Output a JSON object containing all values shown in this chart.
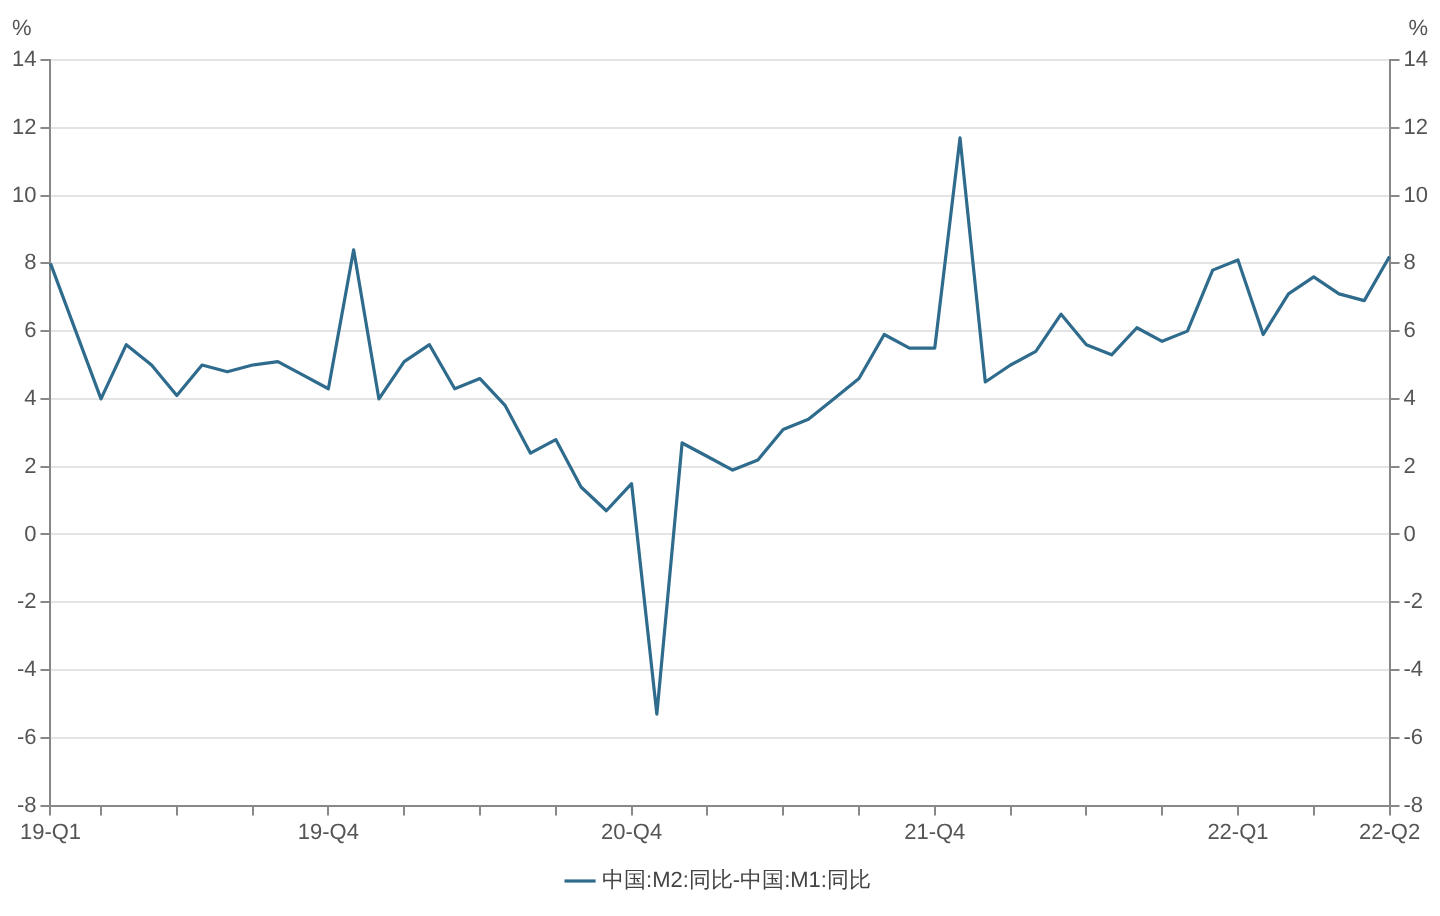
{
  "chart_data": {
    "type": "line",
    "categories": [
      "19-Q1",
      null,
      null,
      null,
      null,
      null,
      null,
      null,
      null,
      null,
      null,
      "19-Q4",
      null,
      null,
      null,
      null,
      null,
      null,
      null,
      null,
      null,
      null,
      null,
      "20-Q4",
      null,
      null,
      null,
      null,
      null,
      null,
      null,
      null,
      null,
      null,
      null,
      "21-Q4",
      null,
      null,
      null,
      null,
      null,
      null,
      null,
      null,
      null,
      null,
      null,
      "22-Q1",
      null,
      null,
      null,
      null,
      null,
      "22-Q2"
    ],
    "series": [
      {
        "name": "中国:M2:同比-中国:M1:同比",
        "color": "#2e6b8c",
        "values": [
          8.0,
          6.0,
          4.0,
          5.6,
          5.0,
          4.1,
          5.0,
          4.8,
          5.0,
          5.1,
          4.7,
          4.3,
          8.4,
          4.0,
          5.1,
          5.6,
          4.3,
          4.6,
          3.8,
          2.4,
          2.8,
          1.4,
          0.7,
          1.5,
          -5.3,
          2.7,
          2.3,
          1.9,
          2.2,
          3.1,
          3.4,
          4.0,
          4.6,
          5.9,
          5.5,
          5.5,
          11.7,
          4.5,
          5.0,
          5.4,
          6.5,
          5.6,
          5.3,
          6.1,
          5.7,
          6.0,
          7.8,
          8.1,
          5.9,
          7.1,
          7.6,
          7.1,
          6.9,
          8.2
        ]
      }
    ],
    "ylabel": "%",
    "y2label": "%",
    "ylim": [
      -8,
      14
    ],
    "yticks": [
      -8,
      -6,
      -4,
      -2,
      0,
      2,
      4,
      6,
      8,
      10,
      12,
      14
    ],
    "y2lim": [
      -8,
      14
    ],
    "y2ticks": [
      -8,
      -6,
      -4,
      -2,
      0,
      2,
      4,
      6,
      8,
      10,
      12,
      14
    ],
    "grid": "y",
    "legend": "bottom",
    "marker": "none",
    "line_style": "solid"
  }
}
